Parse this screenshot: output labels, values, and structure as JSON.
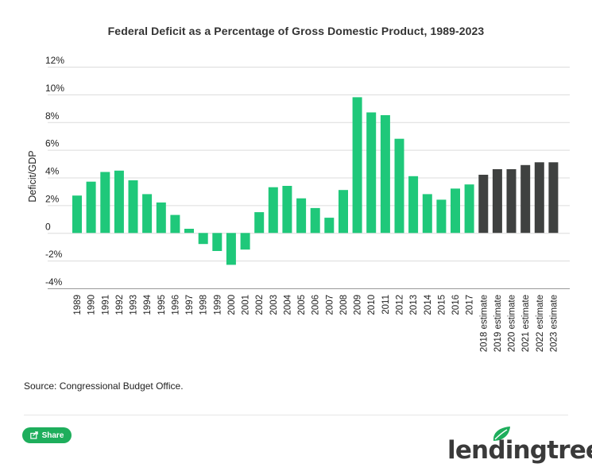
{
  "chart_data": {
    "type": "bar",
    "title": "Federal Deficit as a Percentage of Gross Domestic Product, 1989-2023",
    "xlabel": "",
    "ylabel": "Deficit/GDP",
    "ylim": [
      -4,
      12
    ],
    "y_ticks": [
      12,
      10,
      8,
      6,
      4,
      2,
      0,
      -2,
      -4
    ],
    "y_tick_labels": [
      "12%",
      "10%",
      "8%",
      "6%",
      "4%",
      "2%",
      "0",
      "-2%",
      "-4%"
    ],
    "grid": true,
    "categories": [
      "1989",
      "1990",
      "1991",
      "1992",
      "1993",
      "1994",
      "1995",
      "1996",
      "1997",
      "1998",
      "1999",
      "2000",
      "2001",
      "2002",
      "2003",
      "2004",
      "2005",
      "2006",
      "2007",
      "2008",
      "2009",
      "2010",
      "2011",
      "2012",
      "2013",
      "2014",
      "2015",
      "2016",
      "2017",
      "2018 estimate",
      "2019 estimate",
      "2020 estimate",
      "2021 estimate",
      "2022 estimate",
      "2023 estimate"
    ],
    "values": [
      2.7,
      3.7,
      4.4,
      4.5,
      3.8,
      2.8,
      2.2,
      1.3,
      0.3,
      -0.8,
      -1.3,
      -2.3,
      -1.2,
      1.5,
      3.3,
      3.4,
      2.5,
      1.8,
      1.1,
      3.1,
      9.8,
      8.7,
      8.5,
      6.8,
      4.1,
      2.8,
      2.4,
      3.2,
      3.5,
      4.2,
      4.6,
      4.6,
      4.9,
      5.1,
      5.1
    ],
    "colors": {
      "actual": "#1fc87a",
      "estimate": "#3f4140"
    }
  },
  "source": "Source: Congressional Budget Office.",
  "share_label": "Share",
  "brand_name": "lendingtree",
  "colors": {
    "brand_green": "#1eae5c",
    "grid": "#dcdcdc",
    "axis": "#999999"
  }
}
